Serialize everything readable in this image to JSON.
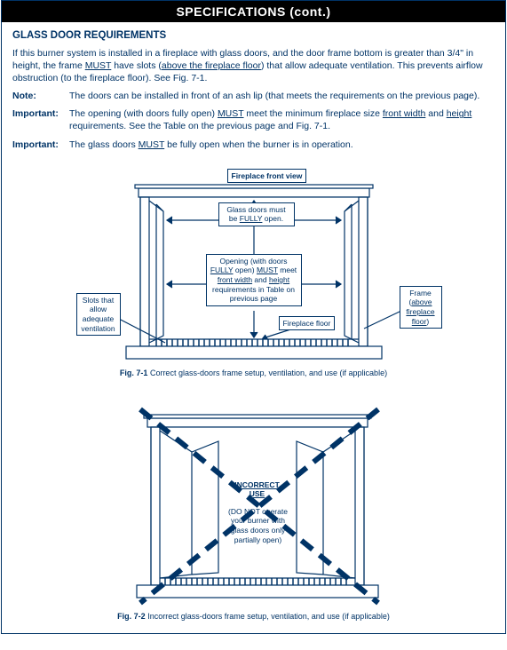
{
  "header": "SPECIFICATIONS (cont.)",
  "section_title": "GLASS DOOR REQUIREMENTS",
  "intro_html": "If this burner system is installed in a fireplace with glass doors, and the door frame bottom is greater than 3/4\" in height, the frame <span class='u'>MUST</span> have slots (<span class='u'>above the fireplace floor</span>) that allow adequate ventilation. This prevents airflow obstruction (to the fireplace floor). See Fig. 7-1.",
  "note_label": "Note:",
  "note_text": "The doors can be installed in front of an ash lip (that meets the requirements on the previous page).",
  "imp1_label": "Important:",
  "imp1_html": "The opening (with doors fully open) <span class='u'>MUST</span> meet the minimum fireplace size <span class='u'>front width</span> and <span class='u'>height</span> requirements. See the Table on the previous page and Fig. 7-1.",
  "imp2_label": "Important:",
  "imp2_html": "The glass doors <span class='u'>MUST</span> be fully open when the burner is in operation.",
  "fig1": {
    "front_view": "Fireplace front view",
    "doors_open_html": "Glass doors must<br>be <span class='u'>FULLY</span> open.",
    "opening_html": "Opening (with doors<br><span class='u'>FULLY</span> open) <span class='u'>MUST</span> meet<br><span class='u'>front width</span> and <span class='u'>height</span><br>requirements in Table on<br>previous page",
    "slots_html": "Slots that<br>allow<br>adequate<br>ventilation",
    "frame_html": "Frame<br>(<span class='u'>above</span><br><span class='u'>fireplace</span><br><span class='u'>floor</span>)",
    "floor": "Fireplace floor",
    "caption_html": "<b>Fig. 7-1</b> Correct glass-doors frame setup, ventilation, and use (if applicable)"
  },
  "fig2": {
    "incorrect_html": "<b><span class='u'>INCORRECT</span><br><span class='u'>USE</span></b>",
    "dont_html": "(DO NOT operate<br>your burner with<br>glass doors only<br>partially open)",
    "caption_html": "<b>Fig. 7-2</b> Incorrect glass-doors frame setup, ventilation, and use (if applicable)"
  },
  "colors": {
    "primary": "#003366",
    "black": "#000000",
    "white": "#ffffff"
  }
}
